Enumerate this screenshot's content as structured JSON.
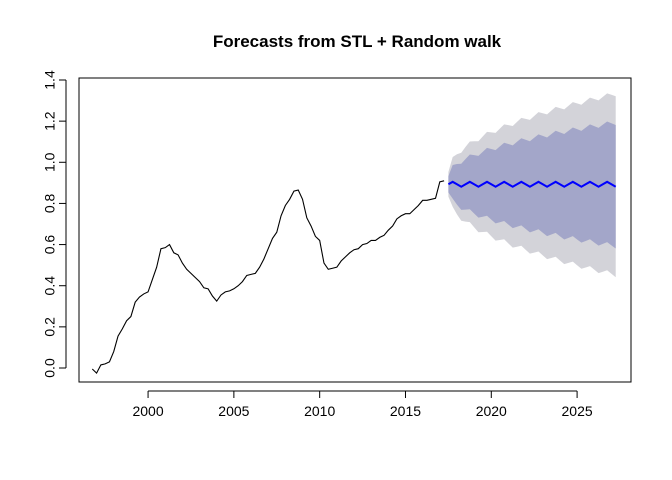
{
  "chart_data": {
    "type": "line",
    "title": "Forecasts from STL +  Random walk",
    "xlabel": "",
    "ylabel": "",
    "xlim": [
      1996.5,
      2027.5
    ],
    "ylim": [
      -0.03,
      1.4
    ],
    "x_ticks": [
      2000,
      2005,
      2010,
      2015,
      2020,
      2025
    ],
    "y_ticks": [
      0.0,
      0.2,
      0.4,
      0.6,
      0.8,
      1.0,
      1.2,
      1.4
    ],
    "x_tick_labels": [
      "2000",
      "2005",
      "2010",
      "2015",
      "2020",
      "2025"
    ],
    "y_tick_labels": [
      "0.0",
      "0.2",
      "0.4",
      "0.6",
      "0.8",
      "1.0",
      "1.2",
      "1.4"
    ],
    "grid": false,
    "colors": {
      "observed": "#000000",
      "forecast": "#0000ff",
      "band_80": "#a3a6c9",
      "band_95": "#d3d3d9"
    },
    "observed": {
      "x": [
        1996.75,
        1997.0,
        1997.25,
        1997.5,
        1997.75,
        1998.0,
        1998.25,
        1998.5,
        1998.75,
        1999.0,
        1999.25,
        1999.5,
        1999.75,
        2000.0,
        2000.25,
        2000.5,
        2000.75,
        2001.0,
        2001.25,
        2001.5,
        2001.75,
        2002.0,
        2002.25,
        2002.5,
        2002.75,
        2003.0,
        2003.25,
        2003.5,
        2003.75,
        2004.0,
        2004.25,
        2004.5,
        2004.75,
        2005.0,
        2005.25,
        2005.5,
        2005.75,
        2006.0,
        2006.25,
        2006.5,
        2006.75,
        2007.0,
        2007.25,
        2007.5,
        2007.75,
        2008.0,
        2008.25,
        2008.5,
        2008.75,
        2009.0,
        2009.25,
        2009.5,
        2009.75,
        2010.0,
        2010.25,
        2010.5,
        2010.75,
        2011.0,
        2011.25,
        2011.5,
        2011.75,
        2012.0,
        2012.25,
        2012.5,
        2012.75,
        2013.0,
        2013.25,
        2013.5,
        2013.75,
        2014.0,
        2014.25,
        2014.5,
        2014.75,
        2015.0,
        2015.25,
        2015.5,
        2015.75,
        2016.0,
        2016.25,
        2016.5,
        2016.75,
        2017.0,
        2017.25
      ],
      "y": [
        -0.005,
        -0.025,
        0.015,
        0.02,
        0.03,
        0.08,
        0.155,
        0.19,
        0.23,
        0.25,
        0.32,
        0.345,
        0.36,
        0.37,
        0.43,
        0.49,
        0.58,
        0.585,
        0.6,
        0.56,
        0.55,
        0.51,
        0.48,
        0.46,
        0.44,
        0.42,
        0.39,
        0.385,
        0.35,
        0.325,
        0.355,
        0.37,
        0.375,
        0.385,
        0.4,
        0.42,
        0.45,
        0.455,
        0.46,
        0.49,
        0.53,
        0.58,
        0.63,
        0.66,
        0.74,
        0.79,
        0.82,
        0.86,
        0.865,
        0.82,
        0.73,
        0.69,
        0.64,
        0.62,
        0.51,
        0.48,
        0.485,
        0.49,
        0.52,
        0.54,
        0.56,
        0.575,
        0.58,
        0.6,
        0.605,
        0.62,
        0.62,
        0.635,
        0.645,
        0.67,
        0.69,
        0.725,
        0.74,
        0.75,
        0.75,
        0.77,
        0.79,
        0.815,
        0.815,
        0.82,
        0.825,
        0.905,
        0.91
      ]
    },
    "forecast": {
      "start": 2017.5,
      "end": 2027.25,
      "step": 0.25,
      "mean_level": 0.893,
      "seasonal_amplitude": 0.012,
      "seasonal_period": 1.0,
      "band_80_halfwidth_start": 0.04,
      "band_80_halfwidth_end": 0.3,
      "band_95_halfwidth_start": 0.06,
      "band_95_halfwidth_end": 0.44
    }
  }
}
